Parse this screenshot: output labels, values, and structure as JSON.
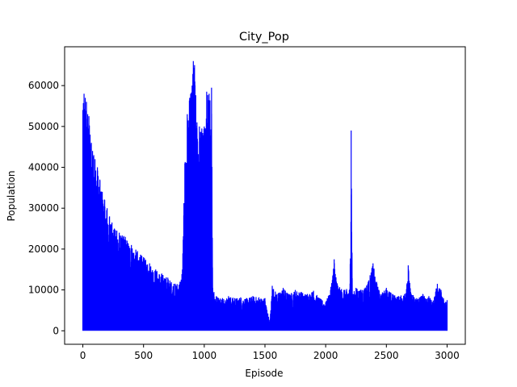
{
  "chart_data": {
    "type": "line",
    "title": "City_Pop",
    "xlabel": "Episode",
    "ylabel": "Population",
    "xlim": [
      -150,
      3150
    ],
    "ylim": [
      -3300,
      69500
    ],
    "xticks": [
      0,
      500,
      1000,
      1500,
      2000,
      2500,
      3000
    ],
    "yticks": [
      0,
      10000,
      20000,
      30000,
      40000,
      50000,
      60000
    ],
    "grid": false,
    "legend": "none",
    "color": "#0000ff",
    "series": [
      {
        "x": [
          0,
          10,
          20,
          30,
          40,
          50,
          60,
          70,
          80,
          90,
          100,
          120,
          140,
          160,
          180,
          200,
          220,
          240,
          260,
          280,
          300,
          350,
          400,
          450,
          500,
          550,
          600,
          650,
          700,
          750,
          800,
          820,
          840,
          860,
          880,
          900,
          910,
          920,
          940,
          960,
          980,
          1000,
          1020,
          1040,
          1060,
          1070,
          1080,
          1100,
          1150,
          1200,
          1250,
          1300,
          1350,
          1400,
          1450,
          1500,
          1540,
          1560,
          1600,
          1650,
          1700,
          1750,
          1800,
          1850,
          1900,
          1950,
          2000,
          2040,
          2070,
          2100,
          2150,
          2200,
          2210,
          2220,
          2250,
          2300,
          2350,
          2390,
          2420,
          2450,
          2500,
          2550,
          2600,
          2650,
          2680,
          2700,
          2750,
          2800,
          2850,
          2880,
          2920,
          2950,
          2970,
          3000
        ],
        "y": [
          54000,
          58000,
          57000,
          56000,
          53000,
          52500,
          48000,
          46000,
          44000,
          43000,
          42000,
          40000,
          37000,
          34000,
          32000,
          30000,
          28000,
          26500,
          25000,
          24500,
          24000,
          23000,
          21000,
          19500,
          18000,
          16500,
          15000,
          14000,
          13000,
          11500,
          12000,
          15000,
          41000,
          53000,
          57000,
          60000,
          66000,
          65000,
          51000,
          50000,
          49500,
          50000,
          58500,
          58000,
          59500,
          10500,
          9500,
          8500,
          8000,
          8500,
          8000,
          8200,
          8000,
          8500,
          8200,
          8000,
          2000,
          11000,
          9000,
          10500,
          9000,
          10000,
          9500,
          9000,
          9800,
          8000,
          7000,
          10000,
          17500,
          11000,
          10000,
          10500,
          49000,
          9000,
          10500,
          10000,
          12000,
          16500,
          12000,
          9000,
          10500,
          9000,
          8500,
          9000,
          16000,
          9500,
          8000,
          9000,
          8500,
          7000,
          11500,
          10000,
          8000,
          7500
        ]
      }
    ]
  }
}
